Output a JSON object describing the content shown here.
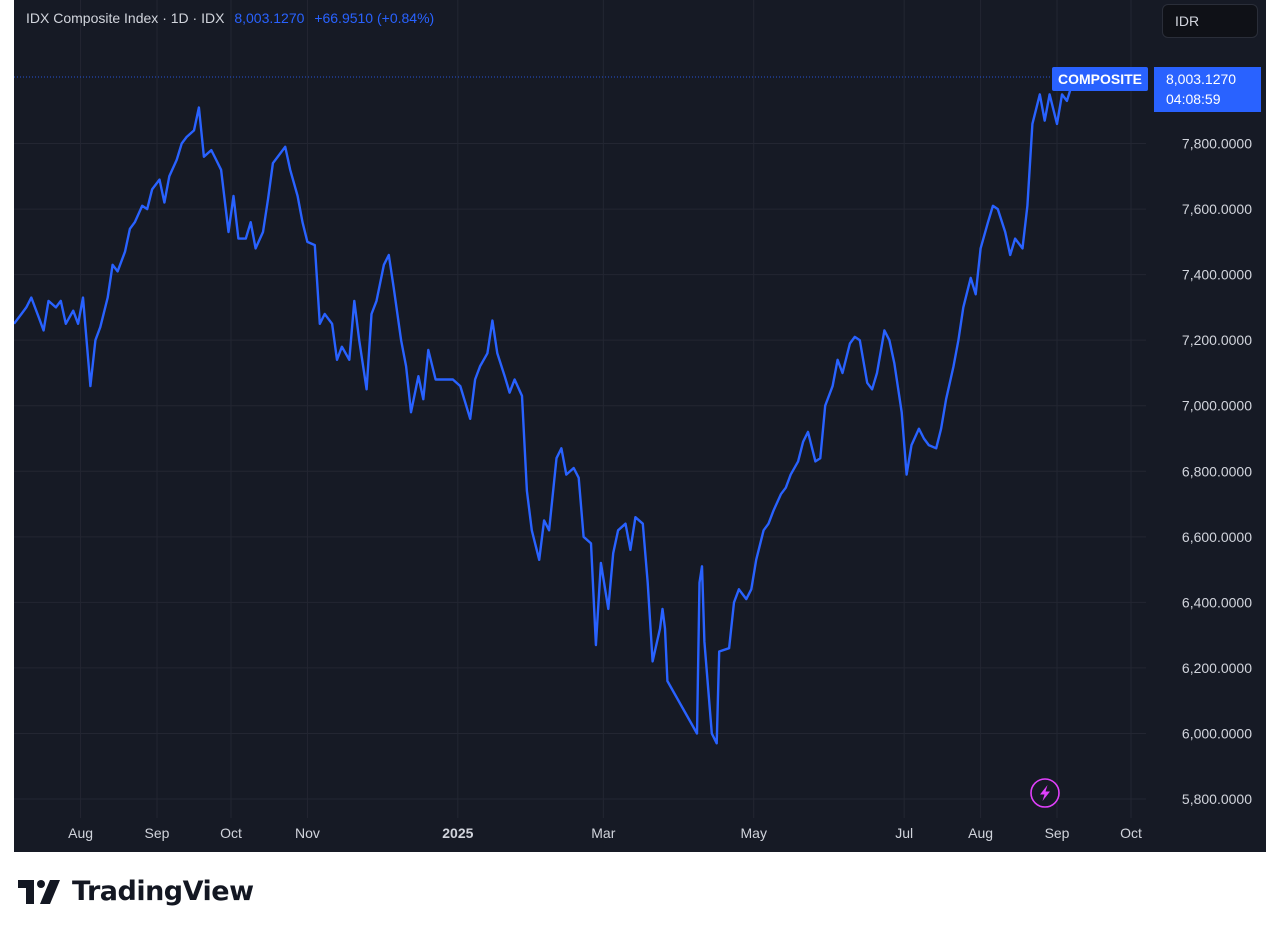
{
  "header": {
    "name": "IDX Composite Index",
    "sep1": "·",
    "interval": "1D",
    "sep2": "·",
    "exchange": "IDX",
    "last": "8,003.1270",
    "change": "+66.9510 (+0.84%)"
  },
  "currency_button": "IDR",
  "last_label": {
    "symbol": "COMPOSITE",
    "price": "8,003.1270",
    "countdown": "04:08:59"
  },
  "colors": {
    "background": "#161a25",
    "line": "#2962ff",
    "grid": "#232632",
    "axis_text": "#d1d4dc",
    "lightning": "#e040fb"
  },
  "icons": [
    "tradingview-logo-icon",
    "lightning-icon"
  ],
  "brand": "TradingView",
  "chart_data": {
    "type": "line",
    "title": "IDX Composite Index · 1D · IDX",
    "ylim": [
      5800,
      8000
    ],
    "yticks": [
      5800,
      6000,
      6200,
      6400,
      6600,
      6800,
      7000,
      7200,
      7400,
      7600,
      7800
    ],
    "ytick_labels": [
      "5,800.0000",
      "6,000.0000",
      "6,200.0000",
      "6,400.0000",
      "6,600.0000",
      "6,800.0000",
      "7,000.0000",
      "7,200.0000",
      "7,400.0000",
      "7,600.0000",
      "7,800.0000"
    ],
    "xticks": [
      {
        "label": "Aug",
        "date": "2024-08-01"
      },
      {
        "label": "Sep",
        "date": "2024-09-01"
      },
      {
        "label": "Oct",
        "date": "2024-10-01"
      },
      {
        "label": "Nov",
        "date": "2024-11-01"
      },
      {
        "label": "2025",
        "date": "2025-01-01"
      },
      {
        "label": "Mar",
        "date": "2025-03-01"
      },
      {
        "label": "May",
        "date": "2025-05-01"
      },
      {
        "label": "Jul",
        "date": "2025-07-01"
      },
      {
        "label": "Aug",
        "date": "2025-08-01"
      },
      {
        "label": "Sep",
        "date": "2025-09-01"
      },
      {
        "label": "Oct",
        "date": "2025-10-01"
      }
    ],
    "grid": true,
    "series": [
      {
        "name": "COMPOSITE",
        "points": [
          [
            "2024-07-05",
            7250
          ],
          [
            "2024-07-08",
            7280
          ],
          [
            "2024-07-10",
            7300
          ],
          [
            "2024-07-12",
            7330
          ],
          [
            "2024-07-15",
            7270
          ],
          [
            "2024-07-17",
            7230
          ],
          [
            "2024-07-19",
            7320
          ],
          [
            "2024-07-22",
            7300
          ],
          [
            "2024-07-24",
            7320
          ],
          [
            "2024-07-26",
            7250
          ],
          [
            "2024-07-29",
            7290
          ],
          [
            "2024-07-31",
            7250
          ],
          [
            "2024-08-02",
            7330
          ],
          [
            "2024-08-05",
            7060
          ],
          [
            "2024-08-07",
            7200
          ],
          [
            "2024-08-09",
            7240
          ],
          [
            "2024-08-12",
            7330
          ],
          [
            "2024-08-14",
            7430
          ],
          [
            "2024-08-16",
            7410
          ],
          [
            "2024-08-19",
            7470
          ],
          [
            "2024-08-21",
            7540
          ],
          [
            "2024-08-23",
            7560
          ],
          [
            "2024-08-26",
            7610
          ],
          [
            "2024-08-28",
            7600
          ],
          [
            "2024-08-30",
            7660
          ],
          [
            "2024-09-02",
            7690
          ],
          [
            "2024-09-04",
            7620
          ],
          [
            "2024-09-06",
            7700
          ],
          [
            "2024-09-09",
            7750
          ],
          [
            "2024-09-11",
            7800
          ],
          [
            "2024-09-13",
            7820
          ],
          [
            "2024-09-16",
            7840
          ],
          [
            "2024-09-18",
            7910
          ],
          [
            "2024-09-20",
            7760
          ],
          [
            "2024-09-23",
            7780
          ],
          [
            "2024-09-25",
            7750
          ],
          [
            "2024-09-27",
            7720
          ],
          [
            "2024-09-30",
            7530
          ],
          [
            "2024-10-02",
            7640
          ],
          [
            "2024-10-04",
            7510
          ],
          [
            "2024-10-07",
            7510
          ],
          [
            "2024-10-09",
            7560
          ],
          [
            "2024-10-11",
            7480
          ],
          [
            "2024-10-14",
            7530
          ],
          [
            "2024-10-16",
            7630
          ],
          [
            "2024-10-18",
            7740
          ],
          [
            "2024-10-21",
            7770
          ],
          [
            "2024-10-23",
            7790
          ],
          [
            "2024-10-25",
            7720
          ],
          [
            "2024-10-28",
            7640
          ],
          [
            "2024-10-30",
            7560
          ],
          [
            "2024-11-01",
            7500
          ],
          [
            "2024-11-04",
            7490
          ],
          [
            "2024-11-06",
            7250
          ],
          [
            "2024-11-08",
            7280
          ],
          [
            "2024-11-11",
            7250
          ],
          [
            "2024-11-13",
            7140
          ],
          [
            "2024-11-15",
            7180
          ],
          [
            "2024-11-18",
            7140
          ],
          [
            "2024-11-20",
            7320
          ],
          [
            "2024-11-22",
            7200
          ],
          [
            "2024-11-25",
            7050
          ],
          [
            "2024-11-27",
            7280
          ],
          [
            "2024-11-29",
            7320
          ],
          [
            "2024-12-02",
            7430
          ],
          [
            "2024-12-04",
            7460
          ],
          [
            "2024-12-06",
            7360
          ],
          [
            "2024-12-09",
            7200
          ],
          [
            "2024-12-11",
            7120
          ],
          [
            "2024-12-13",
            6980
          ],
          [
            "2024-12-16",
            7090
          ],
          [
            "2024-12-18",
            7020
          ],
          [
            "2024-12-20",
            7170
          ],
          [
            "2024-12-23",
            7080
          ],
          [
            "2024-12-26",
            7080
          ],
          [
            "2024-12-30",
            7080
          ],
          [
            "2025-01-02",
            7060
          ],
          [
            "2025-01-06",
            6960
          ],
          [
            "2025-01-08",
            7080
          ],
          [
            "2025-01-10",
            7120
          ],
          [
            "2025-01-13",
            7160
          ],
          [
            "2025-01-15",
            7260
          ],
          [
            "2025-01-17",
            7160
          ],
          [
            "2025-01-20",
            7090
          ],
          [
            "2025-01-22",
            7040
          ],
          [
            "2025-01-24",
            7080
          ],
          [
            "2025-01-27",
            7030
          ],
          [
            "2025-01-29",
            6740
          ],
          [
            "2025-01-31",
            6620
          ],
          [
            "2025-02-03",
            6530
          ],
          [
            "2025-02-05",
            6650
          ],
          [
            "2025-02-07",
            6620
          ],
          [
            "2025-02-10",
            6840
          ],
          [
            "2025-02-12",
            6870
          ],
          [
            "2025-02-14",
            6790
          ],
          [
            "2025-02-17",
            6810
          ],
          [
            "2025-02-19",
            6780
          ],
          [
            "2025-02-21",
            6600
          ],
          [
            "2025-02-24",
            6580
          ],
          [
            "2025-02-26",
            6270
          ],
          [
            "2025-02-28",
            6520
          ],
          [
            "2025-03-03",
            6380
          ],
          [
            "2025-03-05",
            6550
          ],
          [
            "2025-03-07",
            6620
          ],
          [
            "2025-03-10",
            6640
          ],
          [
            "2025-03-12",
            6560
          ],
          [
            "2025-03-14",
            6660
          ],
          [
            "2025-03-17",
            6640
          ],
          [
            "2025-03-19",
            6460
          ],
          [
            "2025-03-21",
            6220
          ],
          [
            "2025-03-24",
            6320
          ],
          [
            "2025-03-25",
            6380
          ],
          [
            "2025-03-26",
            6320
          ],
          [
            "2025-03-27",
            6160
          ],
          [
            "2025-04-08",
            6000
          ],
          [
            "2025-04-09",
            6460
          ],
          [
            "2025-04-10",
            6510
          ],
          [
            "2025-04-11",
            6280
          ],
          [
            "2025-04-14",
            6000
          ],
          [
            "2025-04-16",
            5970
          ],
          [
            "2025-04-17",
            6250
          ],
          [
            "2025-04-21",
            6260
          ],
          [
            "2025-04-23",
            6400
          ],
          [
            "2025-04-25",
            6440
          ],
          [
            "2025-04-28",
            6410
          ],
          [
            "2025-04-30",
            6440
          ],
          [
            "2025-05-02",
            6530
          ],
          [
            "2025-05-05",
            6620
          ],
          [
            "2025-05-07",
            6640
          ],
          [
            "2025-05-09",
            6680
          ],
          [
            "2025-05-12",
            6730
          ],
          [
            "2025-05-14",
            6750
          ],
          [
            "2025-05-16",
            6790
          ],
          [
            "2025-05-19",
            6830
          ],
          [
            "2025-05-21",
            6890
          ],
          [
            "2025-05-23",
            6920
          ],
          [
            "2025-05-26",
            6830
          ],
          [
            "2025-05-28",
            6840
          ],
          [
            "2025-05-30",
            7000
          ],
          [
            "2025-06-02",
            7060
          ],
          [
            "2025-06-04",
            7140
          ],
          [
            "2025-06-06",
            7100
          ],
          [
            "2025-06-09",
            7190
          ],
          [
            "2025-06-11",
            7210
          ],
          [
            "2025-06-13",
            7200
          ],
          [
            "2025-06-16",
            7070
          ],
          [
            "2025-06-18",
            7050
          ],
          [
            "2025-06-20",
            7100
          ],
          [
            "2025-06-23",
            7230
          ],
          [
            "2025-06-25",
            7200
          ],
          [
            "2025-06-27",
            7130
          ],
          [
            "2025-06-30",
            6980
          ],
          [
            "2025-07-02",
            6790
          ],
          [
            "2025-07-04",
            6880
          ],
          [
            "2025-07-07",
            6930
          ],
          [
            "2025-07-09",
            6900
          ],
          [
            "2025-07-11",
            6880
          ],
          [
            "2025-07-14",
            6870
          ],
          [
            "2025-07-16",
            6930
          ],
          [
            "2025-07-18",
            7020
          ],
          [
            "2025-07-21",
            7120
          ],
          [
            "2025-07-23",
            7200
          ],
          [
            "2025-07-25",
            7300
          ],
          [
            "2025-07-28",
            7390
          ],
          [
            "2025-07-30",
            7340
          ],
          [
            "2025-08-01",
            7480
          ],
          [
            "2025-08-04",
            7560
          ],
          [
            "2025-08-06",
            7610
          ],
          [
            "2025-08-08",
            7600
          ],
          [
            "2025-08-11",
            7530
          ],
          [
            "2025-08-13",
            7460
          ],
          [
            "2025-08-15",
            7510
          ],
          [
            "2025-08-18",
            7480
          ],
          [
            "2025-08-20",
            7610
          ],
          [
            "2025-08-22",
            7860
          ],
          [
            "2025-08-25",
            7950
          ],
          [
            "2025-08-27",
            7870
          ],
          [
            "2025-08-29",
            7950
          ],
          [
            "2025-09-01",
            7860
          ],
          [
            "2025-09-03",
            7950
          ],
          [
            "2025-09-05",
            7930
          ],
          [
            "2025-09-08",
            8003
          ]
        ]
      }
    ]
  }
}
